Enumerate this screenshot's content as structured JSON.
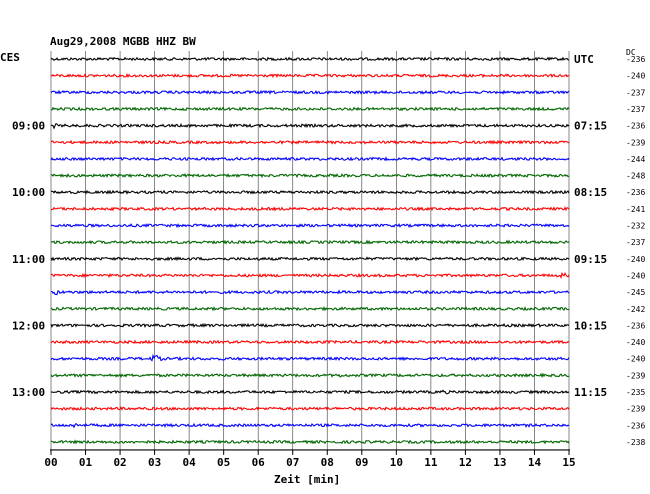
{
  "chart_data": {
    "type": "line",
    "title": "Aug29,2008   MGBB HHZ BW",
    "xlabel": "Zeit [min]",
    "left_axis_label": "CES",
    "right_axis_label": "UTC",
    "dc_label": "DC",
    "x_ticks": [
      "00",
      "01",
      "02",
      "03",
      "04",
      "05",
      "06",
      "07",
      "08",
      "09",
      "10",
      "11",
      "12",
      "13",
      "14",
      "15"
    ],
    "xlim": [
      0,
      15
    ],
    "trace_colors": [
      "#000000",
      "#ff0000",
      "#0000ff",
      "#006600"
    ],
    "left_time_labels": [
      {
        "row": 4,
        "label": "09:00"
      },
      {
        "row": 8,
        "label": "10:00"
      },
      {
        "row": 12,
        "label": "11:00"
      },
      {
        "row": 16,
        "label": "12:00"
      },
      {
        "row": 20,
        "label": "13:00"
      }
    ],
    "right_time_labels": [
      {
        "row": 0,
        "label": "UTC"
      },
      {
        "row": 4,
        "label": "07:15"
      },
      {
        "row": 8,
        "label": "08:15"
      },
      {
        "row": 12,
        "label": "09:15"
      },
      {
        "row": 16,
        "label": "10:15"
      },
      {
        "row": 20,
        "label": "11:15"
      }
    ],
    "dc_offsets": [
      -236,
      -240,
      -237,
      -237,
      -236,
      -239,
      -244,
      -248,
      -236,
      -241,
      -232,
      -237,
      -240,
      -240,
      -245,
      -242,
      -236,
      -240,
      -240,
      -239,
      -235,
      -239,
      -236,
      -238
    ],
    "events": [
      {
        "row": 2,
        "x_min": 7.4,
        "amp": 1.5
      },
      {
        "row": 4,
        "x_min": 0.1,
        "amp": 2.5
      },
      {
        "row": 8,
        "x_min": 11.3,
        "amp": 1.5
      },
      {
        "row": 9,
        "x_min": 7.7,
        "amp": 2
      },
      {
        "row": 11,
        "x_min": 11.3,
        "amp": 1.5
      },
      {
        "row": 12,
        "x_min": 6.0,
        "amp": 1.6
      },
      {
        "row": 13,
        "x_min": 14.8,
        "amp": 3.5
      },
      {
        "row": 14,
        "x_min": 0.15,
        "amp": 3
      },
      {
        "row": 18,
        "x_min": 2.95,
        "amp": 6
      },
      {
        "row": 19,
        "x_min": 8.4,
        "amp": 2
      },
      {
        "row": 20,
        "x_min": 11.4,
        "amp": 2.5
      },
      {
        "row": 22,
        "x_min": 0.7,
        "amp": 2.5
      }
    ]
  }
}
